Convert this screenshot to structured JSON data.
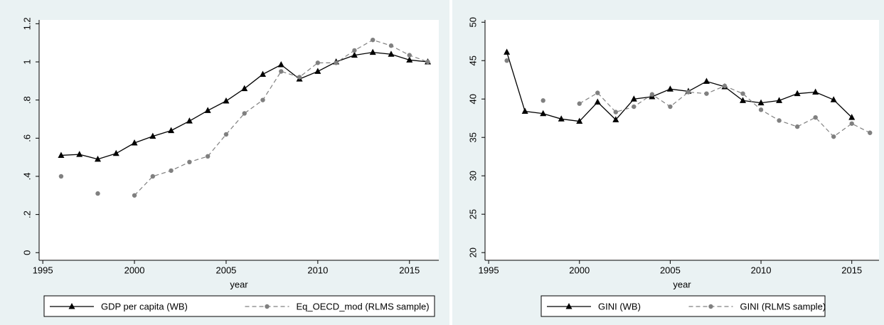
{
  "chart_data": [
    {
      "type": "line",
      "xlabel": "year",
      "x": [
        1996,
        1997,
        1998,
        1999,
        2000,
        2001,
        2002,
        2003,
        2004,
        2005,
        2006,
        2007,
        2008,
        2009,
        2010,
        2011,
        2012,
        2013,
        2014,
        2015,
        2016
      ],
      "series": [
        {
          "name": "GDP per capita (WB)",
          "color": "#000000",
          "line_style": "solid",
          "marker": "triangle",
          "values": [
            0.51,
            0.515,
            0.49,
            0.52,
            0.575,
            0.61,
            0.64,
            0.69,
            0.745,
            0.795,
            0.86,
            0.935,
            0.985,
            0.91,
            0.95,
            1.0,
            1.035,
            1.05,
            1.04,
            1.01,
            1.0
          ]
        },
        {
          "name": "Eq_OECD_mod (RLMS sample)",
          "color": "#808080",
          "line_style": "dashed",
          "marker": "circle",
          "values": [
            0.4,
            null,
            0.31,
            null,
            0.3,
            0.4,
            0.43,
            0.475,
            0.505,
            0.62,
            0.73,
            0.8,
            0.95,
            0.92,
            0.995,
            0.995,
            1.06,
            1.115,
            1.085,
            1.035,
            1.0
          ]
        }
      ],
      "xlim": [
        1994.8,
        2016.6
      ],
      "xticks": [
        1995,
        2000,
        2005,
        2010,
        2015
      ],
      "ylim": [
        -0.04,
        1.22
      ],
      "yticks": [
        0,
        {
          "value": 0.2,
          "label": ".2"
        },
        {
          "value": 0.4,
          "label": ".4"
        },
        {
          "value": 0.6,
          "label": ".6"
        },
        {
          "value": 0.8,
          "label": ".8"
        },
        1,
        1.2
      ],
      "grid": false
    },
    {
      "type": "line",
      "xlabel": "year",
      "x": [
        1996,
        1997,
        1998,
        1999,
        2000,
        2001,
        2002,
        2003,
        2004,
        2005,
        2006,
        2007,
        2008,
        2009,
        2010,
        2011,
        2012,
        2013,
        2014,
        2015,
        2016
      ],
      "series": [
        {
          "name": "GINI (WB)",
          "color": "#000000",
          "line_style": "solid",
          "marker": "triangle",
          "values": [
            46.1,
            38.4,
            38.1,
            37.4,
            37.1,
            39.6,
            37.3,
            40.0,
            40.3,
            41.3,
            41.0,
            42.3,
            41.6,
            39.8,
            39.5,
            39.8,
            40.7,
            40.9,
            39.9,
            37.6,
            null
          ]
        },
        {
          "name": "GINI (RLMS sample)",
          "color": "#808080",
          "line_style": "dashed",
          "marker": "circle",
          "values": [
            45.0,
            null,
            39.8,
            null,
            39.4,
            40.8,
            38.3,
            39.0,
            40.6,
            39.0,
            40.9,
            40.7,
            41.7,
            40.7,
            38.6,
            37.2,
            36.4,
            37.6,
            35.1,
            36.8,
            35.6
          ]
        }
      ],
      "xlim": [
        1994.8,
        2016.5
      ],
      "xticks": [
        1995,
        2000,
        2005,
        2010,
        2015
      ],
      "ylim": [
        19,
        50.3
      ],
      "yticks": [
        20,
        25,
        30,
        35,
        40,
        45,
        50
      ],
      "grid": false
    }
  ]
}
